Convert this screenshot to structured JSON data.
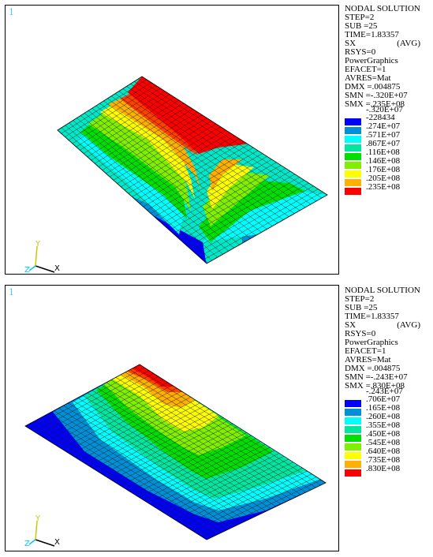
{
  "panels": [
    {
      "window_number": "1",
      "legend": {
        "title": "NODAL SOLUTION",
        "step": "STEP=2",
        "sub": "SUB =25",
        "time": "TIME=1.83357",
        "sx": "SX",
        "avg": "(AVG)",
        "rsys": "RSYS=0",
        "graphics": "PowerGraphics",
        "efacet": "EFACET=1",
        "avres": "AVRES=Mat",
        "dmx": "DMX =.004875",
        "smn": "SMN =-.320E+07",
        "smx": "SMX =.235E+08",
        "contour_values": [
          "-.320E+07",
          "-228434",
          ".274E+07",
          ".571E+07",
          ".867E+07",
          ".116E+08",
          ".146E+08",
          ".176E+08",
          ".205E+08",
          ".235E+08"
        ]
      },
      "triad": {
        "x": "X",
        "y": "Y",
        "z": "Z"
      }
    },
    {
      "window_number": "1",
      "legend": {
        "title": "NODAL SOLUTION",
        "step": "STEP=2",
        "sub": "SUB =25",
        "time": "TIME=1.83357",
        "sx": "SX",
        "avg": "(AVG)",
        "rsys": "RSYS=0",
        "graphics": "PowerGraphics",
        "efacet": "EFACET=1",
        "avres": "AVRES=Mat",
        "dmx": "DMX =.004875",
        "smn": "SMN =-.243E+07",
        "smx": "SMX =.830E+08",
        "contour_values": [
          "-.243E+07",
          ".706E+07",
          ".165E+08",
          ".260E+08",
          ".355E+08",
          ".450E+08",
          ".545E+08",
          ".640E+08",
          ".735E+08",
          ".830E+08"
        ]
      },
      "triad": {
        "x": "X",
        "y": "Y",
        "z": "Z"
      }
    }
  ],
  "contour_colors": [
    "#0000ff",
    "#0090d8",
    "#00ffff",
    "#00e8a0",
    "#00e000",
    "#80f000",
    "#ffff00",
    "#ffb000",
    "#ff4000",
    "#ff0000"
  ],
  "colors": {
    "window_number": "#4fc8f0",
    "mesh_line": "#1a1a1a",
    "triad_x": "#000000",
    "triad_y": "#c8c800",
    "triad_z": "#00c8ff"
  }
}
